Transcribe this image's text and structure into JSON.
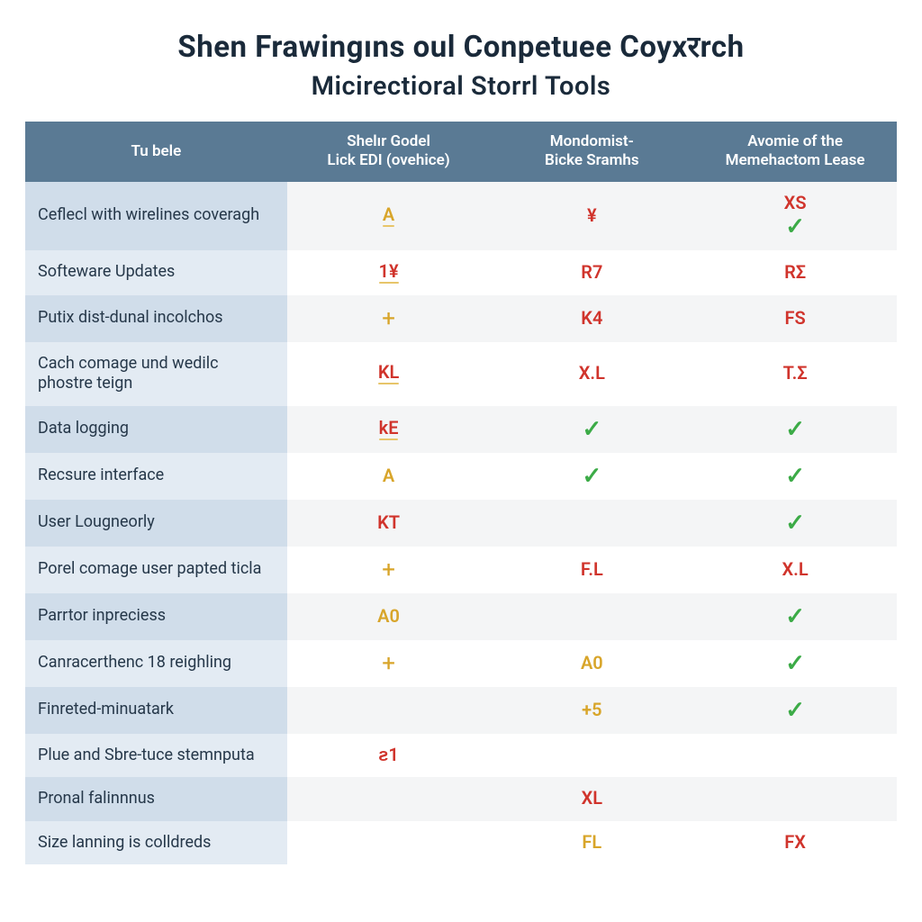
{
  "title": {
    "line1": "Shen Frawingıns oul Conpetuee Coyxरrch",
    "line2": "Micirectioral Storrl Tools",
    "color": "#1a2a3a",
    "line1_fontsize": 33,
    "line2_fontsize": 29
  },
  "table": {
    "type": "table",
    "header_bg": "#5a7a94",
    "header_fg": "#ffffff",
    "feature_stripe_odd": "#d0ddea",
    "feature_stripe_even": "#e3ebf3",
    "cell_stripe_odd": "#f4f5f6",
    "cell_stripe_even": "#ffffff",
    "text_color": "#26384a",
    "colors": {
      "red": "#d0342c",
      "amber": "#d8a52a",
      "green": "#3cab47"
    },
    "columns": [
      {
        "key": "feature",
        "label": "Tu bele"
      },
      {
        "key": "p1",
        "label": "Shelır Godel\nLick EDI (ovehice)"
      },
      {
        "key": "p2",
        "label": "Mondomist-\nBicke Sramhs"
      },
      {
        "key": "p3",
        "label": "Avomie of the\nMemehactom Lease"
      }
    ],
    "rows": [
      {
        "feature": "Ceflecl with wirelines coveragh",
        "p1": {
          "text": "A",
          "style": "amber",
          "underline": true
        },
        "p2": {
          "text": "¥",
          "style": "red"
        },
        "p3": [
          {
            "text": "XS",
            "style": "red"
          },
          {
            "text": "✓",
            "style": "green"
          }
        ]
      },
      {
        "feature": "Softeware Updates",
        "p1": {
          "text": "1¥",
          "style": "red",
          "underline": true
        },
        "p2": {
          "text": "R7",
          "style": "red"
        },
        "p3": {
          "text": "RΣ",
          "style": "red"
        }
      },
      {
        "feature": "Putix dist-dunal incolchos",
        "p1": {
          "text": "+",
          "style": "plus"
        },
        "p2": {
          "text": "K4",
          "style": "red"
        },
        "p3": {
          "text": "FS",
          "style": "red"
        }
      },
      {
        "feature": "Cach comage und wedilc phostre teign",
        "p1": {
          "text": "KL",
          "style": "red",
          "underline": true
        },
        "p2": {
          "text": "X.L",
          "style": "red"
        },
        "p3": {
          "text": "T.Σ",
          "style": "red"
        }
      },
      {
        "feature": "Data logging",
        "p1": {
          "text": "kE",
          "style": "red",
          "underline": true
        },
        "p2": {
          "text": "✓",
          "style": "green"
        },
        "p3": {
          "text": "✓",
          "style": "green"
        }
      },
      {
        "feature": "Recsure interface",
        "p1": {
          "text": "A",
          "style": "amber"
        },
        "p2": {
          "text": "✓",
          "style": "green"
        },
        "p3": {
          "text": "✓",
          "style": "green"
        }
      },
      {
        "feature": "User Lougneorly",
        "p1": {
          "text": "KT",
          "style": "red"
        },
        "p2": null,
        "p3": {
          "text": "✓",
          "style": "green"
        }
      },
      {
        "feature": "Porel comage user papted ticla",
        "p1": {
          "text": "+",
          "style": "plus"
        },
        "p2": {
          "text": "F.L",
          "style": "red"
        },
        "p3": {
          "text": "X.L",
          "style": "red"
        }
      },
      {
        "feature": "Parrtor inpreciess",
        "p1": {
          "text": "A0",
          "style": "amber"
        },
        "p2": null,
        "p3": {
          "text": "✓",
          "style": "green"
        }
      },
      {
        "feature": "Canracerthenc 18 reighling",
        "p1": {
          "text": "+",
          "style": "plus"
        },
        "p2": {
          "text": "A0",
          "style": "amber"
        },
        "p3": {
          "text": "✓",
          "style": "green"
        }
      },
      {
        "feature": "Finreted-minuatark",
        "p1": null,
        "p2": {
          "text": "+5",
          "style": "amber"
        },
        "p3": {
          "text": "✓",
          "style": "green"
        }
      },
      {
        "feature": "Plue and Sbre-tuce stemnputa",
        "p1": {
          "text": "ƨ1",
          "style": "red"
        },
        "p2": null,
        "p3": null
      },
      {
        "feature": "Pronal falinnnus",
        "p1": null,
        "p2": {
          "text": "XL",
          "style": "red"
        },
        "p3": null
      },
      {
        "feature": "Size lanning is colldreds",
        "p1": null,
        "p2": {
          "text": "FL",
          "style": "amber"
        },
        "p3": {
          "text": "FX",
          "style": "red"
        }
      }
    ]
  }
}
